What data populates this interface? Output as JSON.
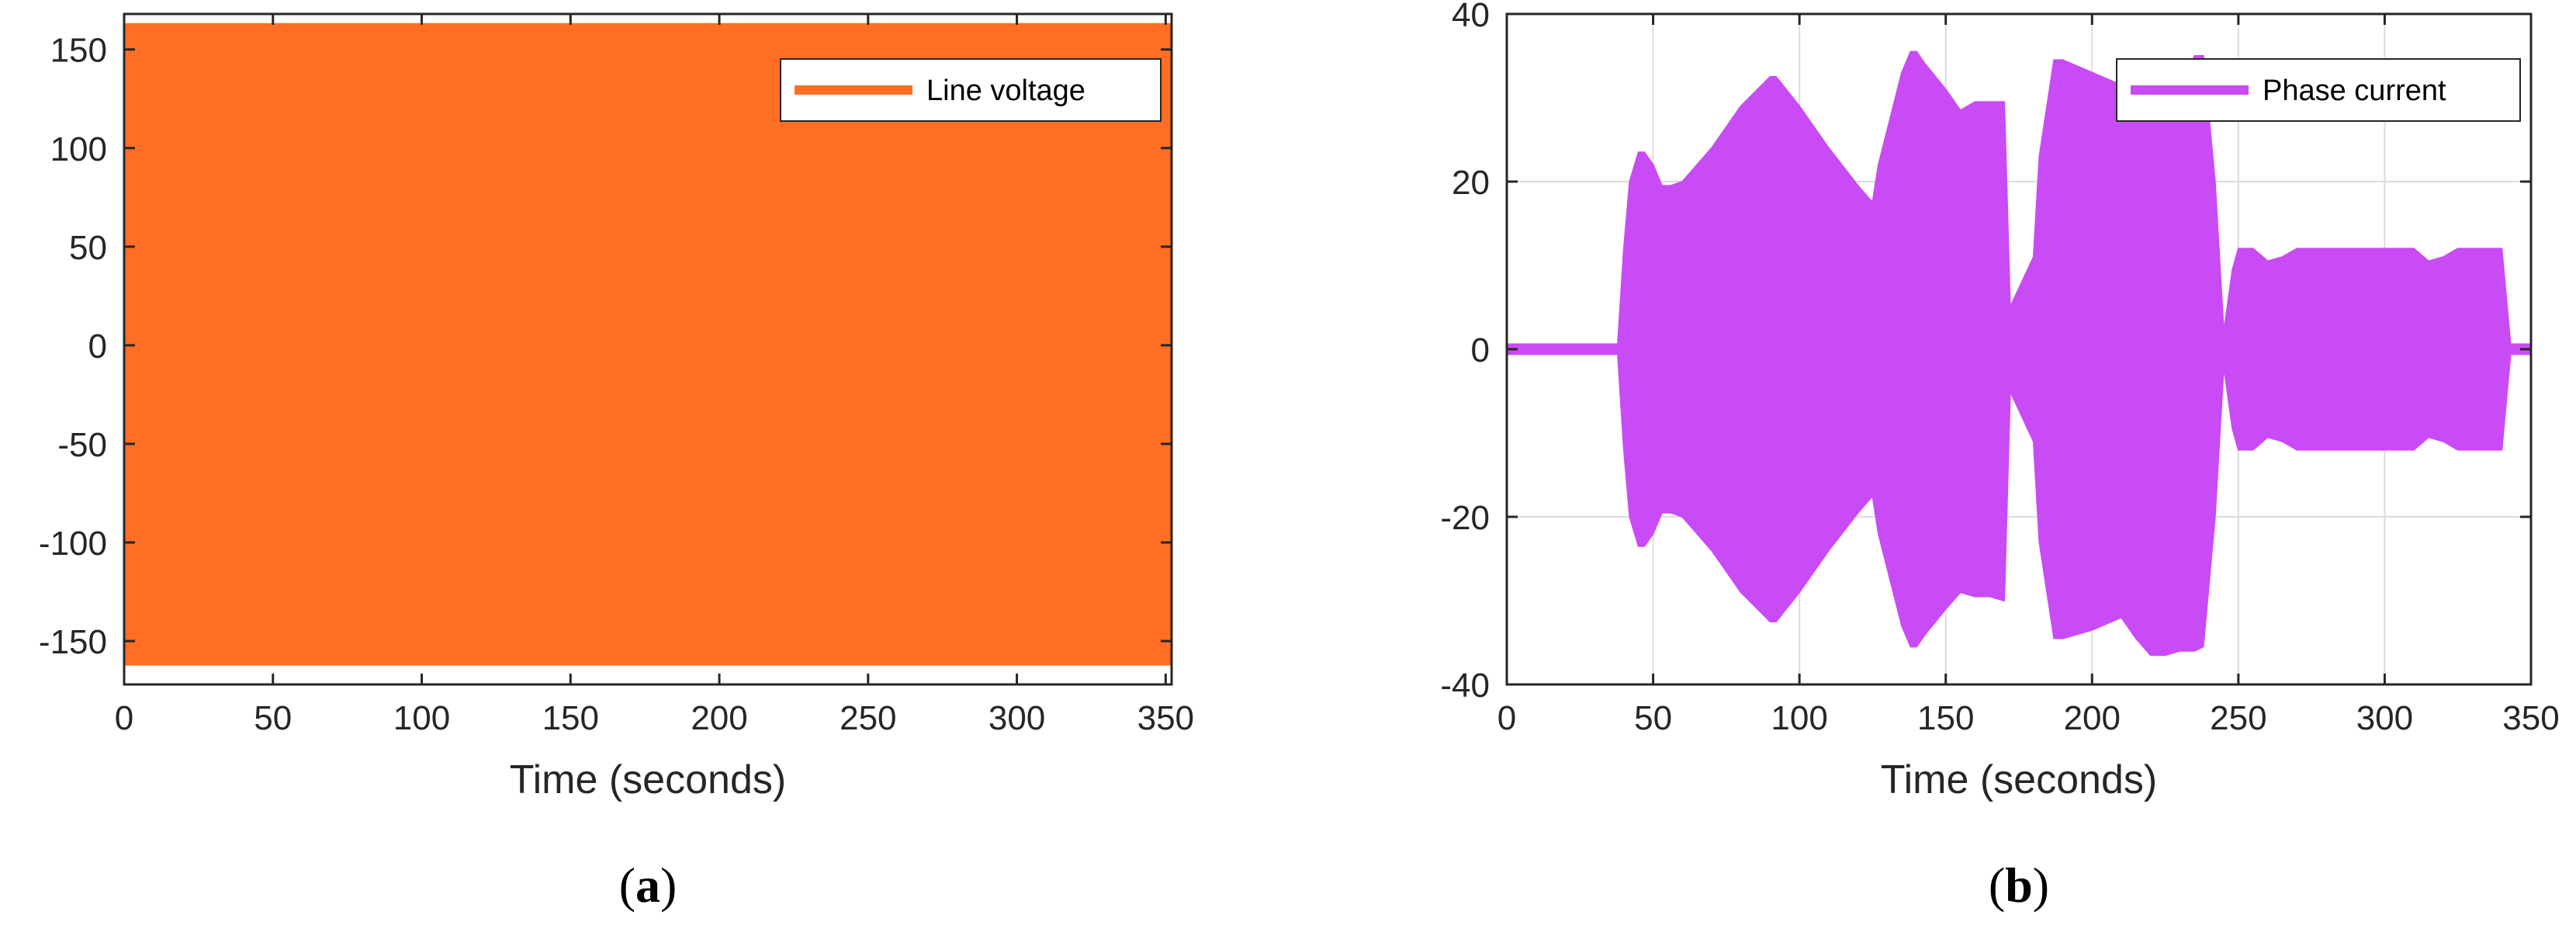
{
  "chart_data": [
    {
      "type": "area",
      "panel_label": "(a)",
      "panel_letter": "a",
      "xlabel": "Time (seconds)",
      "ylabel": "",
      "xlim": [
        0,
        352
      ],
      "ylim": [
        -172,
        168
      ],
      "xticks": [
        0,
        50,
        100,
        150,
        200,
        250,
        300,
        350
      ],
      "yticks": [
        150,
        100,
        50,
        0,
        -50,
        -100,
        -150
      ],
      "grid": false,
      "legend_position": "top-right",
      "series": [
        {
          "name": "Line voltage",
          "color": "#FF6E22",
          "x": [
            0,
            352
          ],
          "upper": [
            163,
            163
          ],
          "lower": [
            -162,
            -162
          ]
        }
      ]
    },
    {
      "type": "area",
      "panel_label": "(b)",
      "panel_letter": "b",
      "xlabel": "Time (seconds)",
      "ylabel": "",
      "xlim": [
        0,
        350
      ],
      "ylim": [
        -40,
        40
      ],
      "xticks": [
        0,
        50,
        100,
        150,
        200,
        250,
        300,
        350
      ],
      "yticks": [
        40,
        20,
        0,
        -20,
        -40
      ],
      "grid": true,
      "legend_position": "top-right",
      "series": [
        {
          "name": "Phase current",
          "color": "#C94BF5",
          "x": [
            0,
            38,
            38,
            40,
            42,
            45,
            47,
            50,
            53,
            56,
            60,
            70,
            80,
            90,
            92,
            100,
            110,
            120,
            125,
            127,
            135,
            138,
            140,
            143,
            150,
            155,
            160,
            162,
            165,
            170,
            172,
            180,
            182,
            187,
            190,
            200,
            210,
            215,
            220,
            225,
            230,
            235,
            238,
            242,
            245,
            248,
            250,
            255,
            260,
            265,
            270,
            280,
            290,
            300,
            310,
            315,
            320,
            325,
            330,
            335,
            340,
            343,
            350
          ],
          "upper": [
            0.6,
            0.6,
            1,
            12,
            20,
            23.5,
            23.5,
            22,
            19.5,
            19.5,
            20,
            24,
            29,
            32.5,
            32.5,
            29,
            24,
            19.5,
            17.5,
            22,
            33,
            35.5,
            35.5,
            34,
            31,
            28.5,
            29.5,
            29.5,
            29.5,
            29.5,
            5,
            11,
            23,
            34.5,
            34.5,
            33,
            31.5,
            31,
            30.5,
            30.5,
            30.5,
            35,
            35,
            20,
            2,
            9.5,
            12,
            12,
            10.5,
            11,
            12,
            12,
            12,
            12,
            12,
            10.5,
            11,
            12,
            12,
            12,
            12,
            0.6,
            0.6
          ],
          "lower": [
            -0.6,
            -0.6,
            -1,
            -12,
            -20,
            -23.5,
            -23.5,
            -22,
            -19.5,
            -19.5,
            -20,
            -24,
            -29,
            -32.5,
            -32.5,
            -29,
            -24,
            -19.5,
            -17.5,
            -22,
            -33,
            -35.5,
            -35.5,
            -34,
            -31,
            -29,
            -29.5,
            -29.5,
            -29.5,
            -30,
            -5,
            -11,
            -23,
            -34.5,
            -34.5,
            -33.5,
            -32,
            -34.5,
            -36.5,
            -36.5,
            -36,
            -36,
            -35.5,
            -20,
            -2,
            -9.5,
            -12,
            -12,
            -10.5,
            -11,
            -12,
            -12,
            -12,
            -12,
            -12,
            -10.5,
            -11,
            -12,
            -12,
            -12,
            -12,
            -0.6,
            -0.6
          ]
        }
      ]
    }
  ]
}
